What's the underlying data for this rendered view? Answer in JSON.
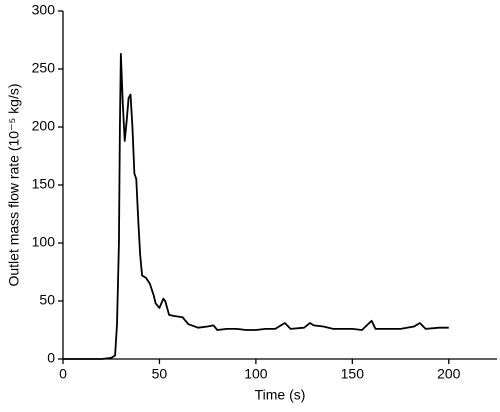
{
  "chart_data": {
    "type": "line",
    "xlabel": "Time (s)",
    "ylabel": "Outlet mass flow rate (10⁻⁵ kg/s)",
    "x": [
      0,
      20,
      25,
      27,
      28,
      29,
      29.5,
      30,
      31,
      32,
      33,
      34,
      35,
      36,
      37,
      38,
      39,
      40,
      41,
      43,
      45,
      47,
      48,
      50,
      52,
      53,
      55,
      58,
      62,
      65,
      70,
      75,
      78,
      80,
      85,
      90,
      95,
      100,
      105,
      110,
      115,
      118,
      125,
      128,
      130,
      135,
      140,
      145,
      150,
      155,
      160,
      162,
      170,
      175,
      182,
      185,
      188,
      195,
      200
    ],
    "series": [
      {
        "color": "#000000",
        "values": [
          0,
          0,
          1,
          3,
          30,
          100,
          200,
          263,
          220,
          188,
          205,
          225,
          228,
          200,
          160,
          155,
          120,
          90,
          72,
          70,
          65,
          55,
          48,
          44,
          52,
          50,
          38,
          37,
          36,
          30,
          27,
          28,
          29,
          25,
          26,
          26,
          25,
          25,
          26,
          26,
          31,
          26,
          27,
          31,
          29,
          28,
          26,
          26,
          26,
          25,
          33,
          26,
          26,
          26,
          28,
          31,
          26,
          27,
          27
        ]
      }
    ],
    "xlim": [
      0,
      225
    ],
    "ylim": [
      0,
      300
    ],
    "xticks": [
      0,
      50,
      100,
      150,
      200
    ],
    "yticks": [
      0,
      50,
      100,
      150,
      200,
      250,
      300
    ]
  }
}
